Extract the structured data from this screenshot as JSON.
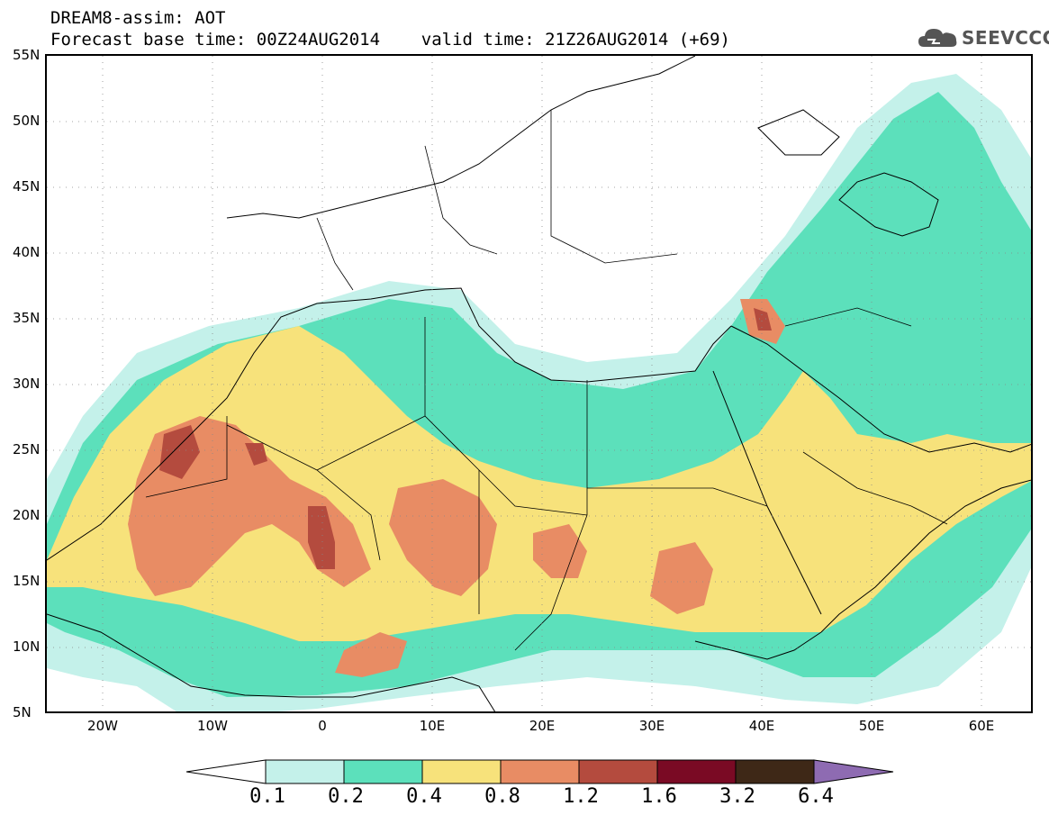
{
  "header": {
    "line1": "DREAM8-assim: AOT",
    "line2": "Forecast base time: 00Z24AUG2014    valid time: 21Z26AUG2014 (+69)",
    "logo_text": "SEEVCCC",
    "logo_icon": "cloud-icon"
  },
  "map": {
    "lat_labels": [
      "55N",
      "50N",
      "45N",
      "40N",
      "35N",
      "30N",
      "25N",
      "20N",
      "15N",
      "10N",
      "5N"
    ],
    "lon_labels": [
      "20W",
      "10W",
      "0",
      "10E",
      "20E",
      "30E",
      "40E",
      "50E",
      "60E"
    ]
  },
  "colorbar": {
    "labels": [
      "0.1",
      "0.2",
      "0.4",
      "0.8",
      "1.2",
      "1.6",
      "3.2",
      "6.4"
    ],
    "colors": [
      "#ffffff",
      "#c4f1ea",
      "#5ce0bb",
      "#f7e27b",
      "#e88c64",
      "#b44b3e",
      "#7a0a24",
      "#3e2817",
      "#8e6bb2"
    ]
  }
}
